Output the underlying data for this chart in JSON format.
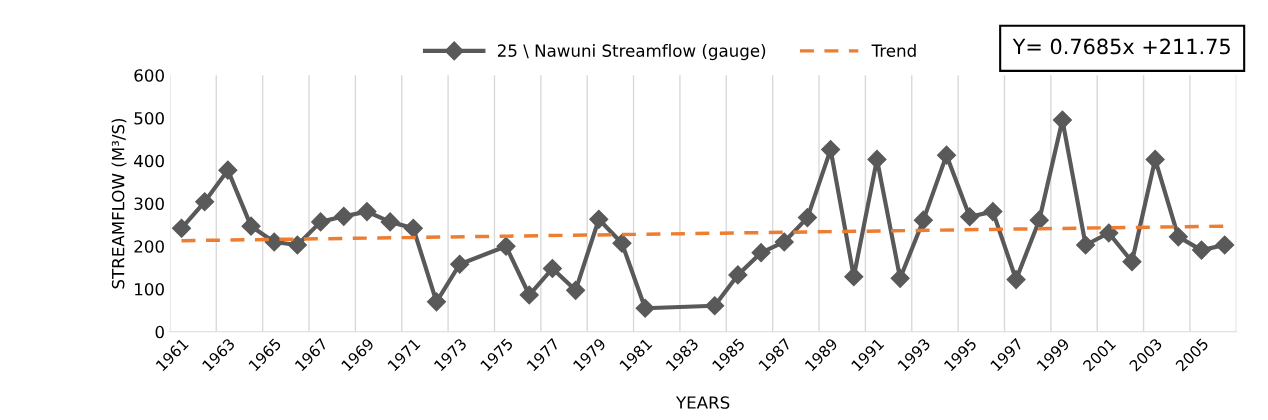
{
  "chart_data": {
    "type": "line",
    "xlabel": "YEARS",
    "ylabel": "STREAMFLOW (M³/S)",
    "categories": [
      "1961",
      null,
      "1963",
      null,
      "1965",
      null,
      "1967",
      null,
      "1969",
      null,
      "1971",
      null,
      "1973",
      null,
      "1975",
      null,
      "1977",
      null,
      "1979",
      null,
      "1981",
      null,
      "1983",
      null,
      "1985",
      null,
      "1987",
      null,
      "1989",
      null,
      "1991",
      null,
      "1993",
      null,
      "1995",
      null,
      "1997",
      null,
      "1999",
      null,
      "2001",
      null,
      "2003",
      null,
      "2005",
      null
    ],
    "series": [
      {
        "name": "25 \\ Nawuni Streamflow (gauge)",
        "color": "#595959",
        "marker": "diamond",
        "line_style": "solid",
        "values": [
          242,
          304,
          378,
          247,
          210,
          203,
          257,
          270,
          281,
          257,
          242,
          70,
          158,
          null,
          200,
          86,
          148,
          97,
          263,
          207,
          55,
          null,
          null,
          61,
          133,
          185,
          210,
          267,
          426,
          129,
          403,
          125,
          261,
          413,
          269,
          281,
          122,
          261,
          495,
          203,
          231,
          164,
          403,
          222,
          191,
          203
        ]
      },
      {
        "name": "Trend",
        "color": "#ed7d31",
        "marker": "none",
        "line_style": "dashed",
        "values": [
          213,
          null,
          null,
          null,
          null,
          null,
          null,
          null,
          null,
          null,
          null,
          null,
          null,
          null,
          null,
          null,
          null,
          null,
          null,
          null,
          null,
          null,
          null,
          null,
          null,
          null,
          null,
          null,
          null,
          null,
          null,
          null,
          null,
          null,
          null,
          null,
          null,
          null,
          null,
          null,
          null,
          null,
          null,
          null,
          null,
          247
        ]
      }
    ],
    "ylim": [
      0,
      600
    ],
    "yticks": [
      0,
      100,
      200,
      300,
      400,
      500,
      600
    ],
    "grid": "x",
    "legend": "top",
    "annotations": [
      "Y= 0.7685x +211.75"
    ]
  }
}
